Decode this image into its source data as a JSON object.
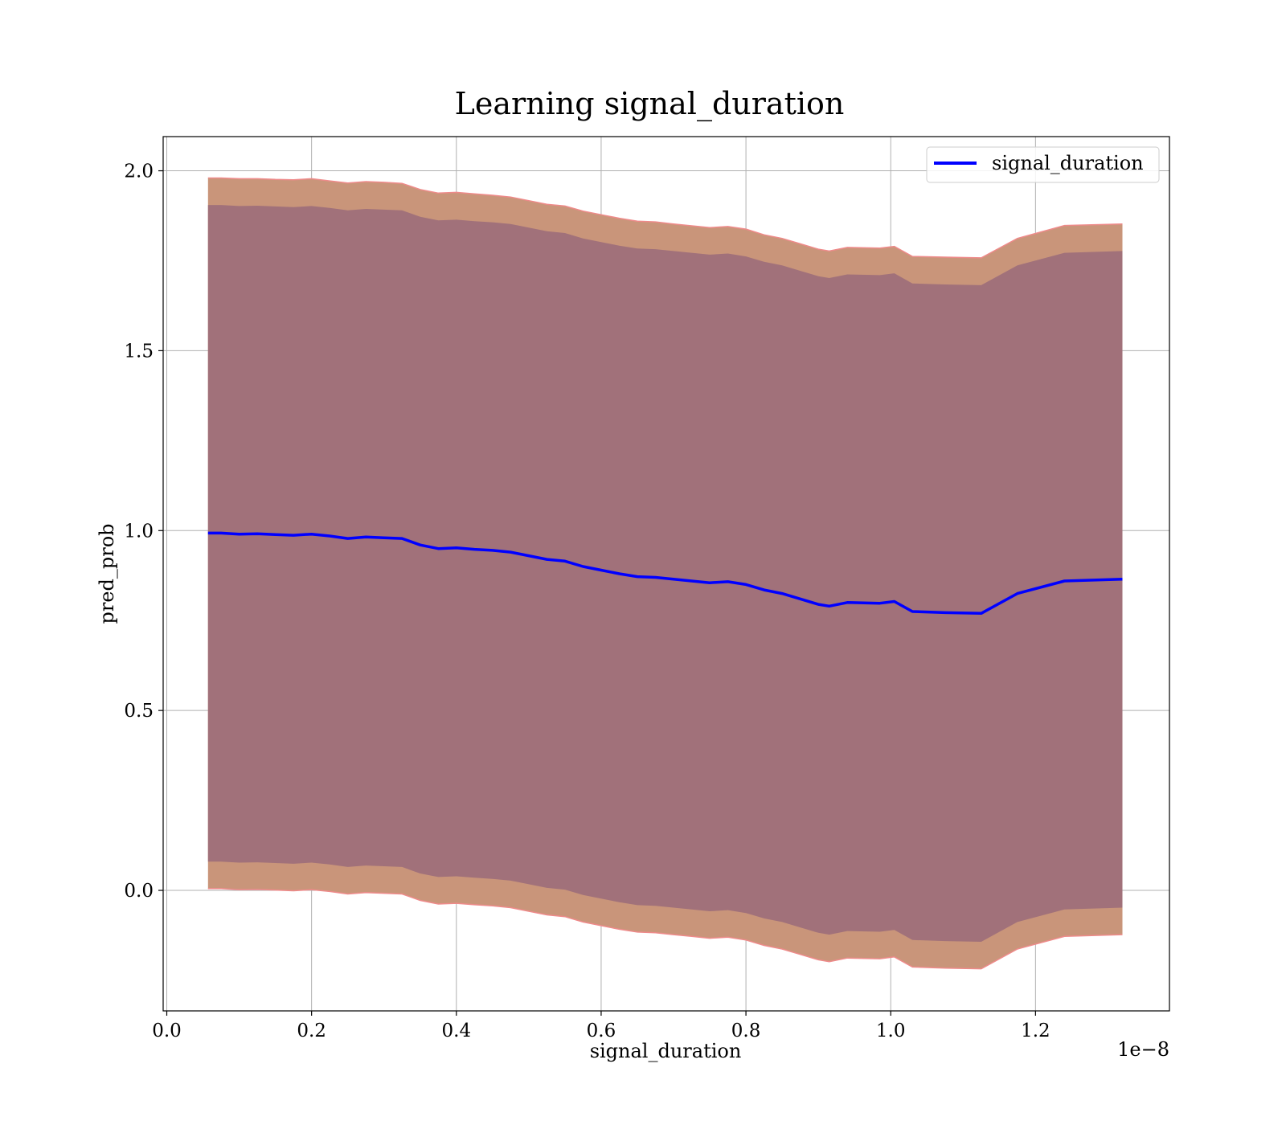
{
  "colors": {
    "line": "#0000ff",
    "outer_band": "#c9957a",
    "inner_band": "#a1717a",
    "band_edge": "#ee8a8a",
    "grid": "#b0b0b0"
  },
  "chart_data": {
    "type": "line",
    "title": "Learning signal_duration",
    "xlabel": "signal_duration",
    "ylabel": "pred_prob",
    "x_offset_label": "1e−8",
    "xlim": [
      -0.005,
      1.385
    ],
    "ylim": [
      -0.335,
      2.095
    ],
    "x_ticks": [
      0.0,
      0.2,
      0.4,
      0.6,
      0.8,
      1.0,
      1.2
    ],
    "x_tick_labels": [
      "0.0",
      "0.2",
      "0.4",
      "0.6",
      "0.8",
      "1.0",
      "1.2"
    ],
    "y_ticks": [
      0.0,
      0.5,
      1.0,
      1.5,
      2.0
    ],
    "y_tick_labels": [
      "0.0",
      "0.5",
      "1.0",
      "1.5",
      "2.0"
    ],
    "grid": true,
    "legend": {
      "position": "top-right",
      "entries": [
        "signal_duration"
      ]
    },
    "x": [
      0.057,
      0.075,
      0.1,
      0.125,
      0.15,
      0.175,
      0.2,
      0.225,
      0.25,
      0.275,
      0.3,
      0.325,
      0.35,
      0.375,
      0.4,
      0.425,
      0.45,
      0.475,
      0.5,
      0.525,
      0.55,
      0.575,
      0.6,
      0.625,
      0.65,
      0.675,
      0.7,
      0.725,
      0.75,
      0.775,
      0.8,
      0.825,
      0.85,
      0.875,
      0.9,
      0.915,
      0.94,
      0.985,
      1.005,
      1.03,
      1.075,
      1.125,
      1.175,
      1.24,
      1.32
    ],
    "series": [
      {
        "name": "signal_duration",
        "values": [
          0.993,
          0.993,
          0.99,
          0.991,
          0.989,
          0.987,
          0.99,
          0.985,
          0.978,
          0.982,
          0.98,
          0.978,
          0.96,
          0.95,
          0.952,
          0.948,
          0.945,
          0.94,
          0.93,
          0.92,
          0.915,
          0.9,
          0.89,
          0.88,
          0.872,
          0.87,
          0.865,
          0.86,
          0.855,
          0.858,
          0.85,
          0.835,
          0.825,
          0.81,
          0.795,
          0.79,
          0.8,
          0.798,
          0.803,
          0.775,
          0.772,
          0.77,
          0.825,
          0.86,
          0.865
        ],
        "outer_upper": [
          1.98,
          1.98,
          1.978,
          1.978,
          1.976,
          1.975,
          1.978,
          1.972,
          1.966,
          1.97,
          1.968,
          1.965,
          1.948,
          1.938,
          1.94,
          1.936,
          1.932,
          1.927,
          1.917,
          1.907,
          1.902,
          1.888,
          1.878,
          1.868,
          1.86,
          1.858,
          1.852,
          1.847,
          1.842,
          1.845,
          1.838,
          1.822,
          1.812,
          1.797,
          1.782,
          1.777,
          1.787,
          1.785,
          1.79,
          1.762,
          1.76,
          1.758,
          1.812,
          1.848,
          1.852
        ],
        "outer_lower": [
          0.005,
          0.005,
          0.002,
          0.003,
          0.001,
          -0.001,
          0.002,
          -0.003,
          -0.01,
          -0.006,
          -0.008,
          -0.01,
          -0.028,
          -0.038,
          -0.036,
          -0.04,
          -0.043,
          -0.048,
          -0.058,
          -0.068,
          -0.073,
          -0.088,
          -0.098,
          -0.108,
          -0.116,
          -0.118,
          -0.123,
          -0.128,
          -0.133,
          -0.13,
          -0.138,
          -0.153,
          -0.163,
          -0.178,
          -0.193,
          -0.198,
          -0.188,
          -0.19,
          -0.185,
          -0.213,
          -0.216,
          -0.218,
          -0.163,
          -0.128,
          -0.123
        ],
        "inner_upper": [
          1.905,
          1.905,
          1.902,
          1.903,
          1.901,
          1.899,
          1.902,
          1.897,
          1.89,
          1.894,
          1.892,
          1.89,
          1.872,
          1.862,
          1.864,
          1.86,
          1.857,
          1.852,
          1.842,
          1.832,
          1.827,
          1.812,
          1.802,
          1.792,
          1.784,
          1.782,
          1.777,
          1.772,
          1.767,
          1.77,
          1.762,
          1.747,
          1.737,
          1.722,
          1.707,
          1.702,
          1.712,
          1.71,
          1.715,
          1.687,
          1.684,
          1.682,
          1.737,
          1.772,
          1.777
        ],
        "inner_lower": [
          0.08,
          0.08,
          0.077,
          0.078,
          0.076,
          0.074,
          0.077,
          0.072,
          0.065,
          0.069,
          0.067,
          0.065,
          0.047,
          0.037,
          0.039,
          0.035,
          0.032,
          0.027,
          0.017,
          0.007,
          0.002,
          -0.013,
          -0.023,
          -0.033,
          -0.041,
          -0.043,
          -0.048,
          -0.053,
          -0.058,
          -0.055,
          -0.063,
          -0.078,
          -0.088,
          -0.103,
          -0.118,
          -0.123,
          -0.113,
          -0.115,
          -0.11,
          -0.138,
          -0.141,
          -0.143,
          -0.088,
          -0.053,
          -0.048
        ]
      }
    ]
  }
}
